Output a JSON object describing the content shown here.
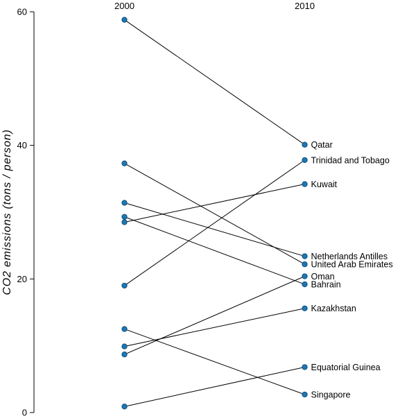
{
  "chart_data": {
    "type": "line",
    "subtype": "slopegraph",
    "title": "",
    "xlabel": "",
    "ylabel": "CO2 emissions (tons / person)",
    "columns": [
      "2000",
      "2010"
    ],
    "ylim": [
      0,
      60
    ],
    "yticks": [
      0,
      20,
      40,
      60
    ],
    "grid": false,
    "legend_position": "labels-right-of-2010-points",
    "point_color": "#1f77b4",
    "point_edge_color": "#12547f",
    "line_color": "#000000",
    "text_color": "#000000",
    "series": [
      {
        "name": "Qatar",
        "values": [
          58.8,
          40.1
        ]
      },
      {
        "name": "Trinidad and Tobago",
        "values": [
          19.0,
          37.8
        ]
      },
      {
        "name": "Kuwait",
        "values": [
          28.5,
          34.2
        ]
      },
      {
        "name": "Netherlands Antilles",
        "values": [
          31.4,
          23.4
        ]
      },
      {
        "name": "United Arab Emirates",
        "values": [
          37.3,
          22.2
        ]
      },
      {
        "name": "Oman",
        "values": [
          8.7,
          20.4
        ]
      },
      {
        "name": "Bahrain",
        "values": [
          29.3,
          19.2
        ]
      },
      {
        "name": "Kazakhstan",
        "values": [
          9.9,
          15.6
        ]
      },
      {
        "name": "Equatorial Guinea",
        "values": [
          0.9,
          6.8
        ]
      },
      {
        "name": "Singapore",
        "values": [
          12.5,
          2.7
        ]
      }
    ]
  }
}
